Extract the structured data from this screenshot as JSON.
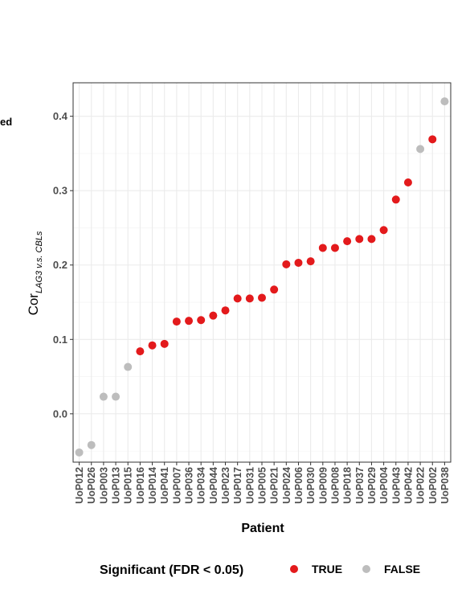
{
  "cut_left_text": "ed",
  "chart_data": {
    "type": "scatter",
    "xlabel": "Patient",
    "ylabel": {
      "main": "Cor",
      "subscript": "LAG3 v.s. CBLs"
    },
    "ylim": [
      -0.065,
      0.445
    ],
    "yticks": [
      "0.0",
      "0.1",
      "0.2",
      "0.3",
      "0.4"
    ],
    "ytick_values": [
      0.0,
      0.1,
      0.2,
      0.3,
      0.4
    ],
    "grid": true,
    "colors": {
      "TRUE": "#e31a1c",
      "FALSE": "#bdbdbd"
    },
    "legend": {
      "position": "bottom",
      "title": "Significant (FDR < 0.05)",
      "entries": [
        "TRUE",
        "FALSE"
      ]
    },
    "categories": [
      "UoP012",
      "UoP026",
      "UoP003",
      "UoP013",
      "UoP015",
      "UoP016",
      "UoP014",
      "UoP041",
      "UoP007",
      "UoP036",
      "UoP034",
      "UoP044",
      "UoP023",
      "UoP017",
      "UoP031",
      "UoP005",
      "UoP021",
      "UoP024",
      "UoP006",
      "UoP030",
      "UoP009",
      "UoP008",
      "UoP018",
      "UoP037",
      "UoP029",
      "UoP004",
      "UoP043",
      "UoP042",
      "UoP022",
      "UoP002",
      "UoP038"
    ],
    "values": [
      -0.052,
      -0.042,
      0.023,
      0.023,
      0.063,
      0.084,
      0.092,
      0.094,
      0.124,
      0.125,
      0.126,
      0.132,
      0.139,
      0.155,
      0.155,
      0.156,
      0.167,
      0.201,
      0.203,
      0.205,
      0.223,
      0.223,
      0.232,
      0.235,
      0.235,
      0.247,
      0.288,
      0.311,
      0.356,
      0.369,
      0.42
    ],
    "significant": [
      "FALSE",
      "FALSE",
      "FALSE",
      "FALSE",
      "FALSE",
      "TRUE",
      "TRUE",
      "TRUE",
      "TRUE",
      "TRUE",
      "TRUE",
      "TRUE",
      "TRUE",
      "TRUE",
      "TRUE",
      "TRUE",
      "TRUE",
      "TRUE",
      "TRUE",
      "TRUE",
      "TRUE",
      "TRUE",
      "TRUE",
      "TRUE",
      "TRUE",
      "TRUE",
      "TRUE",
      "TRUE",
      "FALSE",
      "TRUE",
      "FALSE"
    ]
  }
}
